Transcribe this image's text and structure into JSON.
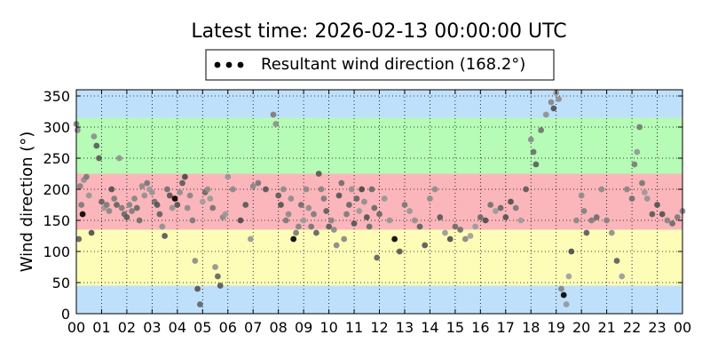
{
  "chart_data": {
    "type": "scatter",
    "title": "Latest time: 2026-02-13 00:00:00 UTC",
    "xlabel": "",
    "ylabel": "Wind direction (°)",
    "xlim": [
      0,
      24
    ],
    "ylim": [
      0,
      360
    ],
    "grid": true,
    "legend_position": "top-center",
    "x_tick_labels": [
      "00",
      "01",
      "02",
      "03",
      "04",
      "05",
      "06",
      "07",
      "08",
      "09",
      "10",
      "11",
      "12",
      "13",
      "14",
      "15",
      "16",
      "17",
      "18",
      "19",
      "20",
      "21",
      "22",
      "23",
      "00"
    ],
    "y_ticks": [
      0,
      50,
      100,
      150,
      200,
      250,
      300,
      350
    ],
    "bands": [
      {
        "from": 0,
        "to": 45,
        "color": "#bfe0fb"
      },
      {
        "from": 45,
        "to": 135,
        "color": "#fdfdb8"
      },
      {
        "from": 135,
        "to": 225,
        "color": "#fbb6bb"
      },
      {
        "from": 225,
        "to": 315,
        "color": "#b6fbb6"
      },
      {
        "from": 315,
        "to": 360,
        "color": "#bfe0fb"
      }
    ],
    "series": [
      {
        "name": "Resultant wind direction (168.2°)",
        "legend_label": "Resultant wind direction (168.2°)",
        "marker_color": "#000000",
        "points": [
          [
            0.0,
            305
          ],
          [
            0.05,
            295
          ],
          [
            0.1,
            120
          ],
          [
            0.15,
            205
          ],
          [
            0.2,
            175
          ],
          [
            0.25,
            160
          ],
          [
            0.3,
            215
          ],
          [
            0.4,
            220
          ],
          [
            0.5,
            190
          ],
          [
            0.6,
            130
          ],
          [
            0.7,
            285
          ],
          [
            0.8,
            270
          ],
          [
            0.9,
            250
          ],
          [
            1.0,
            180
          ],
          [
            1.1,
            170
          ],
          [
            1.2,
            175
          ],
          [
            1.3,
            165
          ],
          [
            1.4,
            200
          ],
          [
            1.5,
            185
          ],
          [
            1.6,
            175
          ],
          [
            1.7,
            250
          ],
          [
            1.8,
            170
          ],
          [
            1.9,
            160
          ],
          [
            2.0,
            155
          ],
          [
            2.1,
            175
          ],
          [
            2.2,
            165
          ],
          [
            2.3,
            185
          ],
          [
            2.4,
            170
          ],
          [
            2.5,
            150
          ],
          [
            2.6,
            205
          ],
          [
            2.7,
            190
          ],
          [
            2.8,
            210
          ],
          [
            2.9,
            200
          ],
          [
            3.0,
            195
          ],
          [
            3.1,
            180
          ],
          [
            3.2,
            175
          ],
          [
            3.3,
            160
          ],
          [
            3.4,
            140
          ],
          [
            3.5,
            125
          ],
          [
            3.6,
            200
          ],
          [
            3.7,
            190
          ],
          [
            3.8,
            170
          ],
          [
            3.9,
            185
          ],
          [
            4.0,
            175
          ],
          [
            4.1,
            195
          ],
          [
            4.2,
            210
          ],
          [
            4.3,
            220
          ],
          [
            4.4,
            170
          ],
          [
            4.5,
            190
          ],
          [
            4.6,
            150
          ],
          [
            4.7,
            85
          ],
          [
            4.8,
            40
          ],
          [
            4.9,
            15
          ],
          [
            5.0,
            180
          ],
          [
            5.1,
            195
          ],
          [
            5.2,
            200
          ],
          [
            5.3,
            185
          ],
          [
            5.4,
            170
          ],
          [
            5.5,
            75
          ],
          [
            5.6,
            60
          ],
          [
            5.7,
            45
          ],
          [
            5.8,
            155
          ],
          [
            5.9,
            160
          ],
          [
            6.0,
            220
          ],
          [
            6.2,
            200
          ],
          [
            6.5,
            150
          ],
          [
            6.7,
            175
          ],
          [
            6.9,
            120
          ],
          [
            7.0,
            205
          ],
          [
            7.2,
            210
          ],
          [
            7.5,
            200
          ],
          [
            7.8,
            320
          ],
          [
            7.9,
            305
          ],
          [
            8.0,
            190
          ],
          [
            8.1,
            175
          ],
          [
            8.2,
            200
          ],
          [
            8.3,
            150
          ],
          [
            8.4,
            160
          ],
          [
            8.5,
            185
          ],
          [
            8.6,
            120
          ],
          [
            8.7,
            130
          ],
          [
            8.8,
            140
          ],
          [
            8.9,
            175
          ],
          [
            9.0,
            150
          ],
          [
            9.1,
            200
          ],
          [
            9.2,
            170
          ],
          [
            9.3,
            140
          ],
          [
            9.4,
            160
          ],
          [
            9.5,
            130
          ],
          [
            9.6,
            225
          ],
          [
            9.7,
            200
          ],
          [
            9.8,
            185
          ],
          [
            9.9,
            165
          ],
          [
            10.0,
            140
          ],
          [
            10.1,
            150
          ],
          [
            10.2,
            135
          ],
          [
            10.3,
            110
          ],
          [
            10.4,
            190
          ],
          [
            10.5,
            210
          ],
          [
            10.6,
            120
          ],
          [
            10.7,
            160
          ],
          [
            10.8,
            175
          ],
          [
            10.9,
            200
          ],
          [
            11.0,
            145
          ],
          [
            11.1,
            185
          ],
          [
            11.2,
            165
          ],
          [
            11.3,
            200
          ],
          [
            11.4,
            180
          ],
          [
            11.5,
            155
          ],
          [
            11.6,
            140
          ],
          [
            11.7,
            200
          ],
          [
            11.8,
            170
          ],
          [
            11.9,
            90
          ],
          [
            12.0,
            160
          ],
          [
            12.2,
            185
          ],
          [
            12.4,
            150
          ],
          [
            12.6,
            120
          ],
          [
            12.8,
            100
          ],
          [
            13.0,
            175
          ],
          [
            13.2,
            165
          ],
          [
            13.4,
            150
          ],
          [
            13.6,
            140
          ],
          [
            13.8,
            110
          ],
          [
            14.0,
            185
          ],
          [
            14.2,
            200
          ],
          [
            14.4,
            155
          ],
          [
            14.6,
            130
          ],
          [
            14.8,
            120
          ],
          [
            15.0,
            140
          ],
          [
            15.2,
            135
          ],
          [
            15.4,
            120
          ],
          [
            15.6,
            125
          ],
          [
            15.8,
            140
          ],
          [
            16.0,
            155
          ],
          [
            16.2,
            150
          ],
          [
            16.4,
            175
          ],
          [
            16.6,
            165
          ],
          [
            16.8,
            170
          ],
          [
            17.0,
            155
          ],
          [
            17.2,
            180
          ],
          [
            17.4,
            170
          ],
          [
            17.6,
            150
          ],
          [
            17.8,
            200
          ],
          [
            18.0,
            280
          ],
          [
            18.1,
            260
          ],
          [
            18.2,
            240
          ],
          [
            18.4,
            295
          ],
          [
            18.6,
            320
          ],
          [
            18.8,
            340
          ],
          [
            18.9,
            330
          ],
          [
            19.0,
            355
          ],
          [
            19.1,
            345
          ],
          [
            19.2,
            40
          ],
          [
            19.3,
            30
          ],
          [
            19.4,
            15
          ],
          [
            19.5,
            60
          ],
          [
            19.6,
            100
          ],
          [
            19.8,
            150
          ],
          [
            20.0,
            190
          ],
          [
            20.1,
            165
          ],
          [
            20.2,
            130
          ],
          [
            20.4,
            150
          ],
          [
            20.6,
            155
          ],
          [
            20.8,
            200
          ],
          [
            21.0,
            150
          ],
          [
            21.2,
            130
          ],
          [
            21.4,
            85
          ],
          [
            21.6,
            60
          ],
          [
            21.8,
            200
          ],
          [
            22.0,
            185
          ],
          [
            22.1,
            240
          ],
          [
            22.2,
            260
          ],
          [
            22.3,
            300
          ],
          [
            22.4,
            210
          ],
          [
            22.5,
            195
          ],
          [
            22.6,
            185
          ],
          [
            22.8,
            160
          ],
          [
            23.0,
            175
          ],
          [
            23.2,
            160
          ],
          [
            23.4,
            150
          ],
          [
            23.6,
            145
          ],
          [
            23.8,
            155
          ],
          [
            24.0,
            165
          ]
        ]
      }
    ]
  }
}
